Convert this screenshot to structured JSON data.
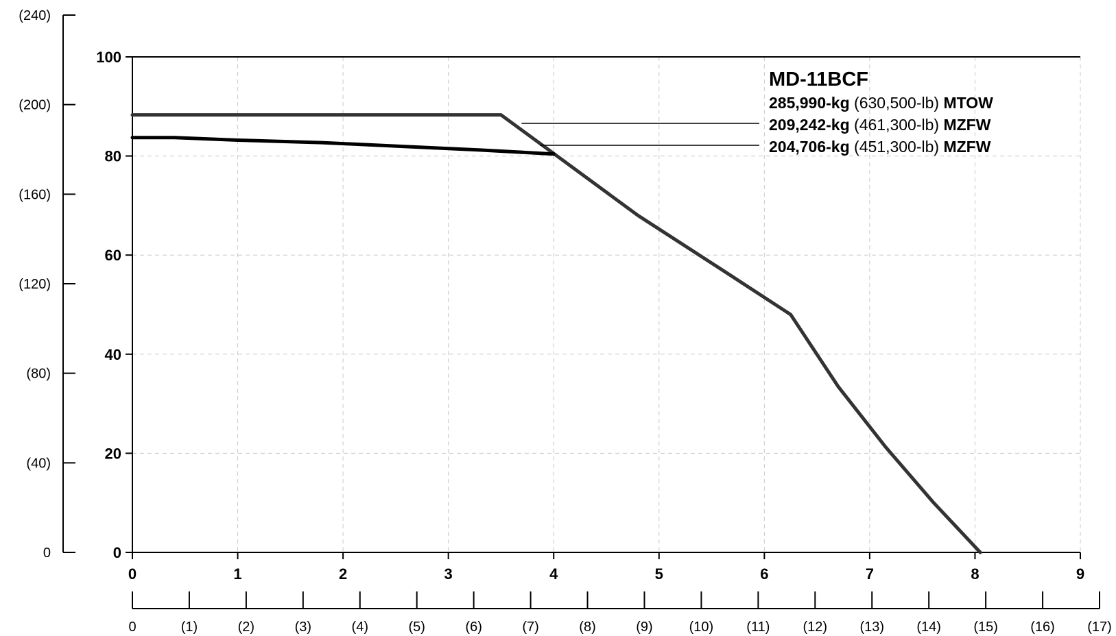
{
  "chart_data": {
    "type": "line",
    "title": "MD-11BCF",
    "xlabel": "",
    "ylabel": "",
    "xlim": [
      0,
      9
    ],
    "ylim": [
      0,
      100
    ],
    "x_ticks": [
      "0",
      "1",
      "2",
      "3",
      "4",
      "5",
      "6",
      "7",
      "8",
      "9"
    ],
    "y_ticks": [
      "0",
      "20",
      "40",
      "60",
      "80",
      "100"
    ],
    "x_secondary_ticks": [
      "0",
      "(1)",
      "(2)",
      "(3)",
      "(4)",
      "(5)",
      "(6)",
      "(7)",
      "(8)",
      "(9)",
      "(10)",
      "(11)",
      "(12)",
      "(13)",
      "(14)",
      "(15)",
      "(16)",
      "(17)"
    ],
    "y_secondary_ticks": [
      "0",
      "(40)",
      "(80)",
      "(120)",
      "(160)",
      "(200)",
      "(240)"
    ],
    "grid": true,
    "legend": [
      {
        "kg": "285,990-kg",
        "lb": "(630,500-lb)",
        "tag": "MTOW"
      },
      {
        "kg": "209,242-kg",
        "lb": "(461,300-lb)",
        "tag": "MZFW"
      },
      {
        "kg": "204,706-kg",
        "lb": "(451,300-lb)",
        "tag": "MZFW"
      }
    ],
    "series": [
      {
        "x": [
          0,
          3.5,
          4.0,
          4.8,
          5.6,
          6.25,
          6.7,
          7.15,
          7.6,
          8.05
        ],
        "y": [
          88.3,
          88.3,
          80.5,
          68.0,
          57.0,
          48.0,
          33.5,
          21.3,
          10.2,
          0
        ]
      },
      {
        "x": [
          0,
          0.4,
          1.0,
          1.8,
          2.6,
          3.3,
          4.0
        ],
        "y": [
          83.7,
          83.7,
          83.2,
          82.7,
          81.9,
          81.2,
          80.4
        ]
      }
    ]
  }
}
